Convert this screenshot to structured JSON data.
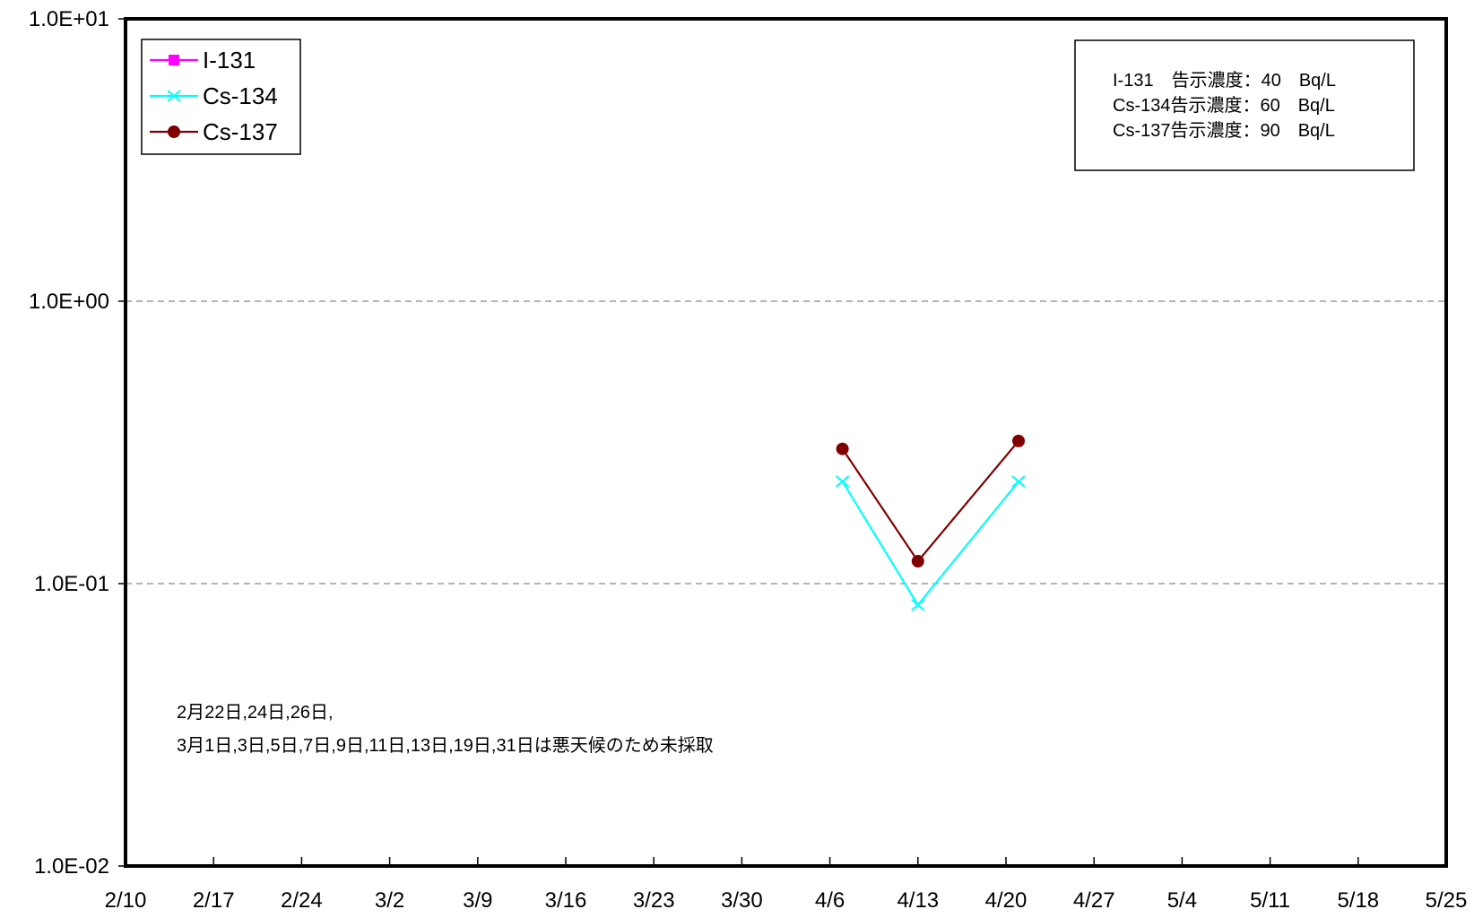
{
  "chart_data": {
    "type": "line",
    "y_scale": "log",
    "ylim": [
      0.01,
      10
    ],
    "y_tick_values": [
      0.01,
      0.1,
      1,
      10
    ],
    "y_tick_labels": [
      "1.0E-02",
      "1.0E-01",
      "1.0E+00",
      "1.0E+01"
    ],
    "x_range": [
      "2/10",
      "5/25"
    ],
    "x_tick_labels": [
      "2/10",
      "2/17",
      "2/24",
      "3/2",
      "3/9",
      "3/16",
      "3/23",
      "3/30",
      "4/6",
      "4/13",
      "4/20",
      "4/27",
      "5/4",
      "5/11",
      "5/18",
      "5/25"
    ],
    "grid": "horizontal dashed",
    "legend_placement": "top-left",
    "series": [
      {
        "name": "I-131",
        "color": "#ff00ff",
        "marker": "square",
        "x": [],
        "y": []
      },
      {
        "name": "Cs-134",
        "color": "#00ffff",
        "marker": "x",
        "x": [
          "4/7",
          "4/13",
          "4/21"
        ],
        "y": [
          0.23,
          0.084,
          0.23
        ]
      },
      {
        "name": "Cs-137",
        "color": "#800000",
        "marker": "circle",
        "x": [
          "4/7",
          "4/13",
          "4/21"
        ],
        "y": [
          0.3,
          0.12,
          0.32
        ]
      }
    ],
    "reference_box": [
      "I-131　告示濃度：40　Bq/L",
      "Cs-134告示濃度：60　Bq/L",
      "Cs-137告示濃度：90　Bq/L"
    ],
    "annotation": [
      "2月22日,24日,26日,",
      "3月1日,3日,5日,7日,9日,11日,13日,19日,31日は悪天候のため未採取"
    ]
  }
}
